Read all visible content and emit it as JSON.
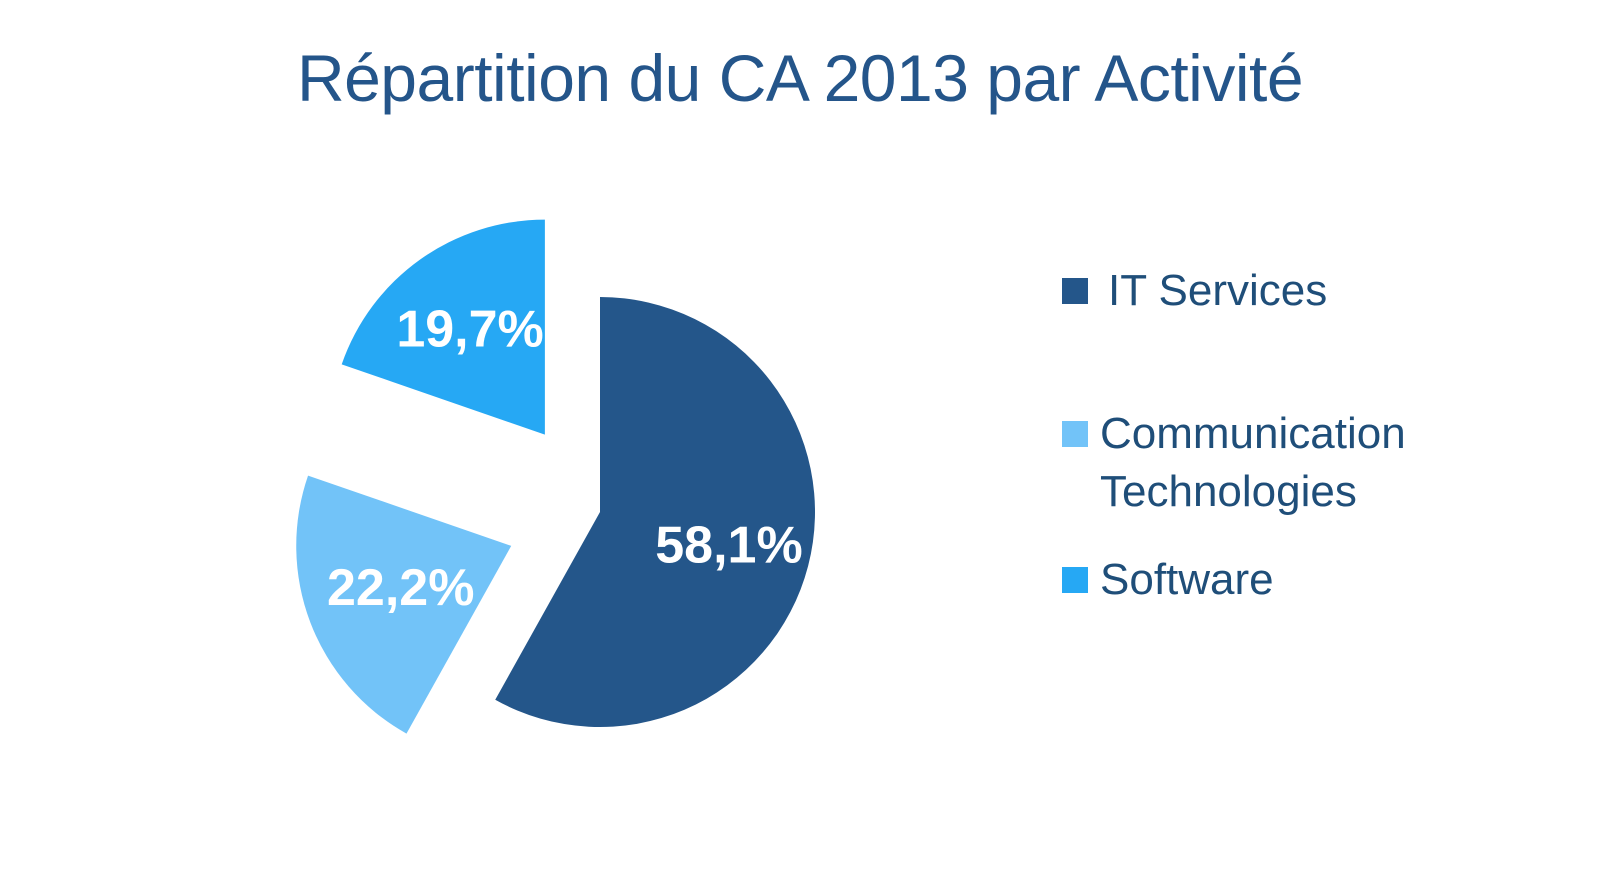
{
  "chart_data": {
    "type": "pie",
    "title": "Répartition du CA 2013 par Activité",
    "title_color": "#24558A",
    "label_color": "#FFFFFF",
    "legend_text_color": "#1F4E79",
    "legend_position": "right",
    "exploded": true,
    "slices": [
      {
        "name": "IT Services",
        "value": 58.1,
        "label": "58,1%",
        "color": "#24568A",
        "legend_label": "IT Services"
      },
      {
        "name": "Communication Technologies",
        "value": 22.2,
        "label": "22,2%",
        "color": "#72C3F8",
        "legend_label": "Communication\nTechnologies"
      },
      {
        "name": "Software",
        "value": 19.7,
        "label": "19,7%",
        "color": "#26A8F4",
        "legend_label": "Software"
      }
    ]
  }
}
